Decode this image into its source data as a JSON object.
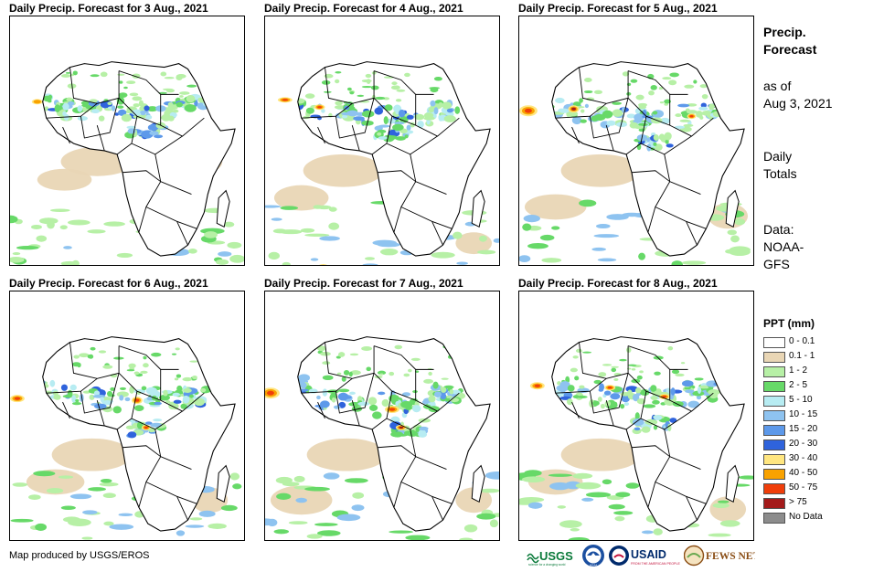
{
  "panels": [
    {
      "title": "Daily Precip. Forecast for 3 Aug., 2021"
    },
    {
      "title": "Daily Precip. Forecast for 4 Aug., 2021"
    },
    {
      "title": "Daily Precip. Forecast for 5 Aug., 2021"
    },
    {
      "title": "Daily Precip. Forecast for 6 Aug., 2021"
    },
    {
      "title": "Daily Precip. Forecast for 7 Aug., 2021"
    },
    {
      "title": "Daily Precip. Forecast for 8 Aug., 2021"
    }
  ],
  "side": {
    "product_line1": "Precip.",
    "product_line2": "Forecast",
    "asof_line1": "as of",
    "asof_line2": "Aug 3, 2021",
    "totals_line1": "Daily",
    "totals_line2": "Totals",
    "data_line1": "Data:",
    "data_line2": "NOAA-",
    "data_line3": "GFS"
  },
  "legend": {
    "title": "PPT (mm)",
    "items": [
      {
        "label": "0 - 0.1",
        "color": "#ffffff"
      },
      {
        "label": "0.1 - 1",
        "color": "#e9d6b5"
      },
      {
        "label": "1 - 2",
        "color": "#b7f0a6"
      },
      {
        "label": "2 - 5",
        "color": "#67d968"
      },
      {
        "label": "5 - 10",
        "color": "#b7ecf2"
      },
      {
        "label": "10 - 15",
        "color": "#8ec3f0"
      },
      {
        "label": "15 - 20",
        "color": "#5d99ea"
      },
      {
        "label": "20 - 30",
        "color": "#2f63dc"
      },
      {
        "label": "30 - 40",
        "color": "#ffe680"
      },
      {
        "label": "40 - 50",
        "color": "#f9a200"
      },
      {
        "label": "50 - 75",
        "color": "#f03e0a"
      },
      {
        "label": "> 75",
        "color": "#a41b1b"
      },
      {
        "label": "No Data",
        "color": "#8c8c8c"
      }
    ]
  },
  "credit": "Map produced by USGS/EROS",
  "logos": {
    "usgs": "USGS",
    "usgs_tag": "science for a changing world",
    "noaa": "NOAA",
    "usaid": "USAID",
    "usaid_tag": "FROM THE AMERICAN PEOPLE",
    "fews": "FEWS NET"
  },
  "colors": {
    "land_bg": "#ffffff",
    "border": "#000000"
  }
}
